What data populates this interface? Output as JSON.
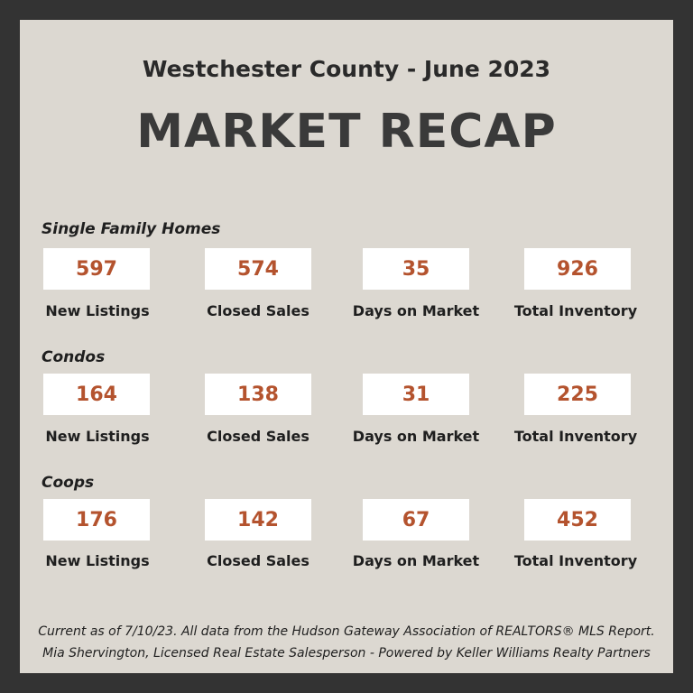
{
  "header": {
    "subtitle": "Westchester County - June 2023",
    "title": "MARKET RECAP"
  },
  "sections": [
    {
      "title": "Single Family Homes",
      "stats": [
        {
          "value": "597",
          "label": "New Listings"
        },
        {
          "value": "574",
          "label": "Closed Sales"
        },
        {
          "value": "35",
          "label": "Days on Market"
        },
        {
          "value": "926",
          "label": "Total Inventory"
        }
      ]
    },
    {
      "title": "Condos",
      "stats": [
        {
          "value": "164",
          "label": "New Listings"
        },
        {
          "value": "138",
          "label": "Closed Sales"
        },
        {
          "value": "31",
          "label": "Days on Market"
        },
        {
          "value": "225",
          "label": "Total Inventory"
        }
      ]
    },
    {
      "title": "Coops",
      "stats": [
        {
          "value": "176",
          "label": "New Listings"
        },
        {
          "value": "142",
          "label": "Closed Sales"
        },
        {
          "value": "67",
          "label": "Days on Market"
        },
        {
          "value": "452",
          "label": "Total Inventory"
        }
      ]
    }
  ],
  "footer": {
    "line1": "Current as of 7/10/23. All data from the Hudson Gateway Association of REALTORS® MLS Report.",
    "line2": "Mia Shervington, Licensed Real Estate Salesperson - Powered by Keller Williams Realty Partners"
  },
  "colors": {
    "frame": "#333333",
    "panel": "#dcd8d1",
    "value": "#b4532e",
    "text": "#1f1f1f"
  }
}
